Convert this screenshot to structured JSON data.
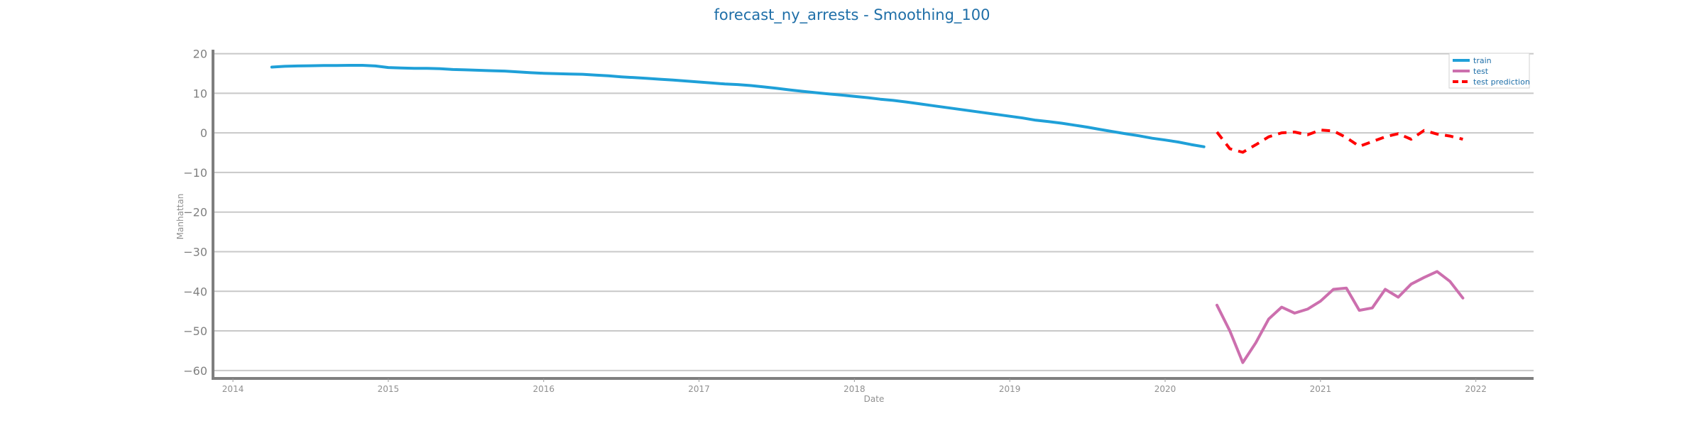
{
  "chart_data": {
    "type": "line",
    "title": "forecast_ny_arrests - Smoothing_100",
    "xlabel": "Date",
    "ylabel": "Manhattan",
    "xlim": [
      "2013-11-15",
      "2022-05-15"
    ],
    "ylim": [
      -62,
      21
    ],
    "x_ticks": [
      "2014",
      "2015",
      "2016",
      "2017",
      "2018",
      "2019",
      "2020",
      "2021",
      "2022"
    ],
    "y_ticks": [
      20,
      10,
      0,
      -10,
      -20,
      -30,
      -40,
      -50,
      -60
    ],
    "grid": true,
    "legend_position": "top-right",
    "colors": {
      "train": "#1fa0d8",
      "test": "#cc6fae",
      "test prediction": "#ff0000"
    },
    "series": [
      {
        "name": "train",
        "style": "solid",
        "x": [
          "2014-04",
          "2014-05",
          "2014-06",
          "2014-07",
          "2014-08",
          "2014-09",
          "2014-10",
          "2014-11",
          "2014-12",
          "2015-01",
          "2015-02",
          "2015-03",
          "2015-04",
          "2015-05",
          "2015-06",
          "2015-07",
          "2015-08",
          "2015-09",
          "2015-10",
          "2015-11",
          "2015-12",
          "2016-01",
          "2016-02",
          "2016-03",
          "2016-04",
          "2016-05",
          "2016-06",
          "2016-07",
          "2016-08",
          "2016-09",
          "2016-10",
          "2016-11",
          "2016-12",
          "2017-01",
          "2017-02",
          "2017-03",
          "2017-04",
          "2017-05",
          "2017-06",
          "2017-07",
          "2017-08",
          "2017-09",
          "2017-10",
          "2017-11",
          "2017-12",
          "2018-01",
          "2018-02",
          "2018-03",
          "2018-04",
          "2018-05",
          "2018-06",
          "2018-07",
          "2018-08",
          "2018-09",
          "2018-10",
          "2018-11",
          "2018-12",
          "2019-01",
          "2019-02",
          "2019-03",
          "2019-04",
          "2019-05",
          "2019-06",
          "2019-07",
          "2019-08",
          "2019-09",
          "2019-10",
          "2019-11",
          "2019-12",
          "2020-01",
          "2020-02",
          "2020-03",
          "2020-04"
        ],
        "y": [
          16.6,
          16.8,
          16.9,
          16.95,
          17.0,
          17.0,
          17.05,
          17.05,
          16.9,
          16.5,
          16.4,
          16.3,
          16.3,
          16.2,
          16.0,
          15.9,
          15.8,
          15.7,
          15.6,
          15.4,
          15.2,
          15.05,
          14.95,
          14.85,
          14.8,
          14.6,
          14.4,
          14.15,
          13.95,
          13.75,
          13.55,
          13.35,
          13.1,
          12.85,
          12.6,
          12.35,
          12.2,
          11.95,
          11.6,
          11.25,
          10.85,
          10.5,
          10.15,
          9.85,
          9.55,
          9.2,
          8.9,
          8.5,
          8.2,
          7.8,
          7.35,
          6.9,
          6.45,
          6.0,
          5.55,
          5.1,
          4.65,
          4.2,
          3.75,
          3.2,
          2.85,
          2.45,
          1.95,
          1.45,
          0.85,
          0.3,
          -0.25,
          -0.75,
          -1.35,
          -1.8,
          -2.3,
          -2.95,
          -3.5
        ]
      },
      {
        "name": "test",
        "style": "solid",
        "x": [
          "2020-05",
          "2020-06",
          "2020-07",
          "2020-08",
          "2020-09",
          "2020-10",
          "2020-11",
          "2020-12",
          "2021-01",
          "2021-02",
          "2021-03",
          "2021-04",
          "2021-05",
          "2021-06",
          "2021-07",
          "2021-08",
          "2021-09",
          "2021-10",
          "2021-11",
          "2021-12"
        ],
        "y": [
          -43.5,
          -50,
          -58,
          -53,
          -47,
          -44,
          -45.5,
          -44.5,
          -42.5,
          -39.5,
          -39.2,
          -44.8,
          -44.2,
          -39.5,
          -41.5,
          -38.2,
          -36.5,
          -35,
          -37.5,
          -41.7
        ]
      },
      {
        "name": "test prediction",
        "style": "dashed",
        "x": [
          "2020-05",
          "2020-06",
          "2020-07",
          "2020-08",
          "2020-09",
          "2020-10",
          "2020-11",
          "2020-12",
          "2021-01",
          "2021-02",
          "2021-03",
          "2021-04",
          "2021-05",
          "2021-06",
          "2021-07",
          "2021-08",
          "2021-09",
          "2021-10",
          "2021-11",
          "2021-12"
        ],
        "y": [
          0.2,
          -4.0,
          -4.9,
          -3.0,
          -1.0,
          0.0,
          0.2,
          -0.5,
          0.7,
          0.5,
          -1.2,
          -3.4,
          -2.2,
          -1.0,
          -0.2,
          -1.6,
          0.6,
          -0.3,
          -0.8,
          -1.6
        ]
      }
    ]
  }
}
